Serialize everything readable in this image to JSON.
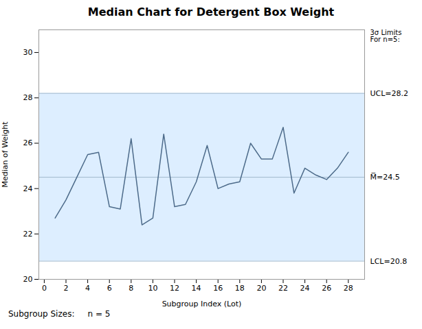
{
  "chart_data": {
    "type": "line",
    "title": "Median Chart for Detergent Box Weight",
    "xlabel": "Subgroup Index (Lot)",
    "ylabel": "Median of Weight",
    "x": [
      1,
      2,
      3,
      4,
      5,
      6,
      7,
      8,
      9,
      10,
      11,
      12,
      13,
      14,
      15,
      16,
      17,
      18,
      19,
      20,
      21,
      22,
      23,
      24,
      25,
      26,
      27,
      28
    ],
    "values": [
      22.7,
      23.5,
      24.5,
      25.5,
      25.6,
      23.2,
      23.1,
      26.2,
      22.4,
      22.7,
      26.4,
      23.2,
      23.3,
      24.3,
      25.9,
      24.0,
      24.2,
      24.3,
      26.0,
      25.3,
      25.3,
      26.7,
      23.8,
      24.9,
      24.6,
      24.4,
      24.9,
      25.6
    ],
    "color": "#4d6b8a",
    "xlim": [
      -0.5,
      29.5
    ],
    "xticks": [
      0,
      2,
      4,
      6,
      8,
      10,
      12,
      14,
      16,
      18,
      20,
      22,
      24,
      26,
      28
    ],
    "ylim": [
      20.0,
      31.0
    ],
    "yticks": [
      20,
      22,
      24,
      26,
      28,
      30
    ],
    "grid": false,
    "band": {
      "from": 20.8,
      "to": 28.2,
      "color": "#ddeeff"
    },
    "reference_lines": [
      {
        "value": 28.2,
        "label": "UCL=28.2",
        "color": "#a0b8cc"
      },
      {
        "value": 24.5,
        "label": "M̅=24.5",
        "color": "#a0b8cc"
      },
      {
        "value": 20.8,
        "label": "LCL=20.8",
        "color": "#a0b8cc"
      }
    ],
    "annotations": [
      "3σ Limits\nFor n=5:"
    ],
    "caption": "Subgroup Sizes:     n = 5"
  }
}
